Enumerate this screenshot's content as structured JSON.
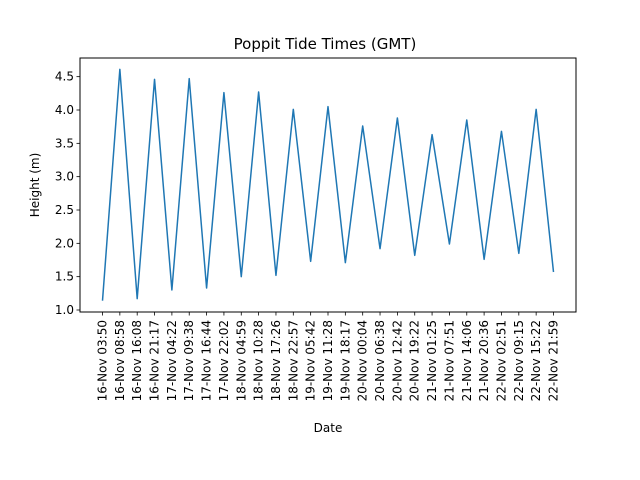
{
  "chart_data": {
    "type": "line",
    "title": "Poppit Tide Times (GMT)",
    "xlabel": "Date",
    "ylabel": "Height (m)",
    "ylim": [
      0.97,
      4.78
    ],
    "yticks": [
      "1.0",
      "1.5",
      "2.0",
      "2.5",
      "3.0",
      "3.5",
      "4.0",
      "4.5"
    ],
    "grid": false,
    "line_color": "#1f77b4",
    "categories": [
      "16-Nov 03:50",
      "16-Nov 08:58",
      "16-Nov 16:08",
      "16-Nov 21:17",
      "17-Nov 04:22",
      "17-Nov 09:38",
      "17-Nov 16:44",
      "17-Nov 22:02",
      "18-Nov 04:59",
      "18-Nov 10:28",
      "18-Nov 17:26",
      "18-Nov 22:57",
      "19-Nov 05:42",
      "19-Nov 11:28",
      "19-Nov 18:17",
      "20-Nov 00:04",
      "20-Nov 06:38",
      "20-Nov 12:42",
      "20-Nov 19:22",
      "21-Nov 01:25",
      "21-Nov 07:51",
      "21-Nov 14:06",
      "21-Nov 20:36",
      "22-Nov 02:51",
      "22-Nov 09:15",
      "22-Nov 15:22",
      "22-Nov 21:59"
    ],
    "series": [
      {
        "values": [
          1.14,
          4.61,
          1.17,
          4.46,
          1.3,
          4.47,
          1.33,
          4.26,
          1.5,
          4.27,
          1.52,
          4.01,
          1.73,
          4.05,
          1.71,
          3.76,
          1.92,
          3.88,
          1.82,
          3.63,
          1.99,
          3.85,
          1.76,
          3.68,
          1.85,
          4.01,
          1.57
        ]
      }
    ]
  }
}
